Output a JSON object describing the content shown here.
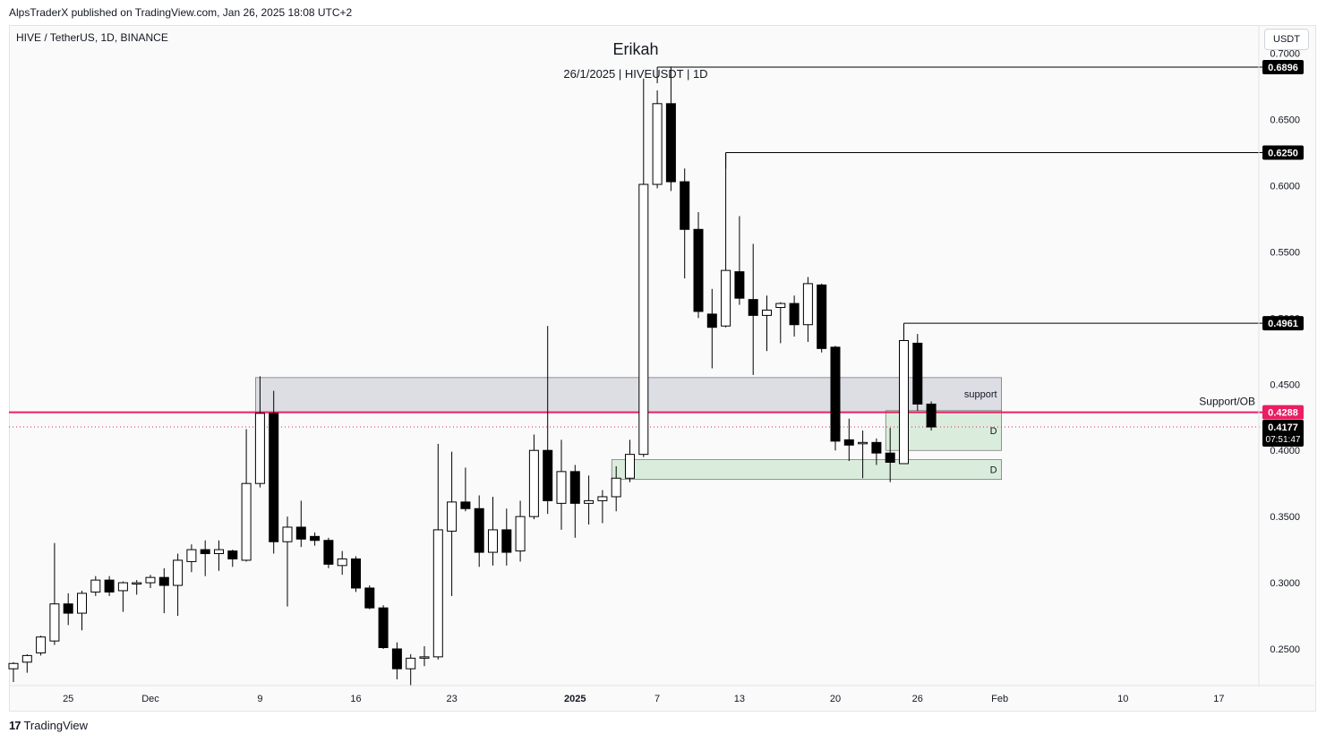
{
  "header": {
    "caption": "AlpsTraderX published on TradingView.com, Jan 26, 2025 18:08 UTC+2",
    "symbol_info": "HIVE / TetherUS, 1D, BINANCE",
    "currency_button": "USDT"
  },
  "footer": {
    "logo": "17",
    "brand": "TradingView"
  },
  "colors": {
    "bull_body": "#ffffff",
    "bear_body": "#000000",
    "candle_outline": "#000000",
    "support_line": "#e91e63",
    "zone_gray": "#d1d4dc",
    "zone_green": "#cfe8d2",
    "axis_text": "#131722"
  },
  "chart_data": {
    "type": "candlestick",
    "title": "Erikah",
    "subtitle": "26/1/2025 | HIVEUSDT | 1D",
    "ylim": [
      0.225,
      0.7
    ],
    "y_ticks": [
      "0.2500",
      "0.3000",
      "0.3500",
      "0.4000",
      "0.4500",
      "0.5000",
      "0.5500",
      "0.6000",
      "0.6500",
      "0.7000"
    ],
    "x_ticks": [
      {
        "date": "2024-11-25",
        "label": "25"
      },
      {
        "date": "2024-12-01",
        "label": "Dec"
      },
      {
        "date": "2024-12-09",
        "label": "9"
      },
      {
        "date": "2024-12-16",
        "label": "16"
      },
      {
        "date": "2024-12-23",
        "label": "23"
      },
      {
        "date": "2025-01-01",
        "label": "2025"
      },
      {
        "date": "2025-01-07",
        "label": "7"
      },
      {
        "date": "2025-01-13",
        "label": "13"
      },
      {
        "date": "2025-01-20",
        "label": "20"
      },
      {
        "date": "2025-01-26",
        "label": "26"
      },
      {
        "date": "2025-02-01",
        "label": "Feb"
      },
      {
        "date": "2025-02-10",
        "label": "10"
      },
      {
        "date": "2025-02-17",
        "label": "17"
      }
    ],
    "x_range": [
      "2024-11-21",
      "2025-02-24"
    ],
    "candles": [
      {
        "date": "2024-11-21",
        "open": 0.235,
        "high": 0.24,
        "low": 0.225,
        "close": 0.239
      },
      {
        "date": "2024-11-22",
        "open": 0.24,
        "high": 0.246,
        "low": 0.232,
        "close": 0.245
      },
      {
        "date": "2024-11-23",
        "open": 0.247,
        "high": 0.26,
        "low": 0.245,
        "close": 0.259
      },
      {
        "date": "2024-11-24",
        "open": 0.256,
        "high": 0.33,
        "low": 0.253,
        "close": 0.284
      },
      {
        "date": "2024-11-25",
        "open": 0.284,
        "high": 0.292,
        "low": 0.268,
        "close": 0.277
      },
      {
        "date": "2024-11-26",
        "open": 0.277,
        "high": 0.294,
        "low": 0.264,
        "close": 0.292
      },
      {
        "date": "2024-11-27",
        "open": 0.293,
        "high": 0.305,
        "low": 0.29,
        "close": 0.302
      },
      {
        "date": "2024-11-28",
        "open": 0.302,
        "high": 0.305,
        "low": 0.29,
        "close": 0.293
      },
      {
        "date": "2024-11-29",
        "open": 0.294,
        "high": 0.301,
        "low": 0.278,
        "close": 0.3
      },
      {
        "date": "2024-11-30",
        "open": 0.299,
        "high": 0.302,
        "low": 0.291,
        "close": 0.3
      },
      {
        "date": "2024-12-01",
        "open": 0.3,
        "high": 0.306,
        "low": 0.296,
        "close": 0.304
      },
      {
        "date": "2024-12-02",
        "open": 0.304,
        "high": 0.311,
        "low": 0.277,
        "close": 0.298
      },
      {
        "date": "2024-12-03",
        "open": 0.298,
        "high": 0.322,
        "low": 0.275,
        "close": 0.317
      },
      {
        "date": "2024-12-04",
        "open": 0.316,
        "high": 0.329,
        "low": 0.308,
        "close": 0.325
      },
      {
        "date": "2024-12-05",
        "open": 0.325,
        "high": 0.332,
        "low": 0.305,
        "close": 0.322
      },
      {
        "date": "2024-12-06",
        "open": 0.322,
        "high": 0.332,
        "low": 0.309,
        "close": 0.325
      },
      {
        "date": "2024-12-07",
        "open": 0.324,
        "high": 0.325,
        "low": 0.312,
        "close": 0.318
      },
      {
        "date": "2024-12-08",
        "open": 0.317,
        "high": 0.416,
        "low": 0.316,
        "close": 0.375
      },
      {
        "date": "2024-12-09",
        "open": 0.375,
        "high": 0.456,
        "low": 0.372,
        "close": 0.428
      },
      {
        "date": "2024-12-10",
        "open": 0.428,
        "high": 0.445,
        "low": 0.322,
        "close": 0.331
      },
      {
        "date": "2024-12-11",
        "open": 0.331,
        "high": 0.35,
        "low": 0.282,
        "close": 0.342
      },
      {
        "date": "2024-12-12",
        "open": 0.342,
        "high": 0.362,
        "low": 0.327,
        "close": 0.333
      },
      {
        "date": "2024-12-13",
        "open": 0.335,
        "high": 0.338,
        "low": 0.328,
        "close": 0.332
      },
      {
        "date": "2024-12-14",
        "open": 0.332,
        "high": 0.334,
        "low": 0.311,
        "close": 0.314
      },
      {
        "date": "2024-12-15",
        "open": 0.313,
        "high": 0.324,
        "low": 0.306,
        "close": 0.318
      },
      {
        "date": "2024-12-16",
        "open": 0.318,
        "high": 0.32,
        "low": 0.293,
        "close": 0.296
      },
      {
        "date": "2024-12-17",
        "open": 0.296,
        "high": 0.298,
        "low": 0.28,
        "close": 0.281
      },
      {
        "date": "2024-12-18",
        "open": 0.281,
        "high": 0.283,
        "low": 0.25,
        "close": 0.251
      },
      {
        "date": "2024-12-19",
        "open": 0.25,
        "high": 0.255,
        "low": 0.227,
        "close": 0.235
      },
      {
        "date": "2024-12-20",
        "open": 0.235,
        "high": 0.246,
        "low": 0.222,
        "close": 0.243
      },
      {
        "date": "2024-12-21",
        "open": 0.243,
        "high": 0.252,
        "low": 0.237,
        "close": 0.244
      },
      {
        "date": "2024-12-22",
        "open": 0.244,
        "high": 0.405,
        "low": 0.242,
        "close": 0.34
      },
      {
        "date": "2024-12-23",
        "open": 0.339,
        "high": 0.399,
        "low": 0.29,
        "close": 0.361
      },
      {
        "date": "2024-12-24",
        "open": 0.361,
        "high": 0.387,
        "low": 0.354,
        "close": 0.356
      },
      {
        "date": "2024-12-25",
        "open": 0.356,
        "high": 0.366,
        "low": 0.312,
        "close": 0.323
      },
      {
        "date": "2024-12-26",
        "open": 0.323,
        "high": 0.365,
        "low": 0.313,
        "close": 0.34
      },
      {
        "date": "2024-12-27",
        "open": 0.34,
        "high": 0.356,
        "low": 0.313,
        "close": 0.323
      },
      {
        "date": "2024-12-28",
        "open": 0.324,
        "high": 0.362,
        "low": 0.316,
        "close": 0.35
      },
      {
        "date": "2024-12-29",
        "open": 0.35,
        "high": 0.412,
        "low": 0.348,
        "close": 0.4
      },
      {
        "date": "2024-12-30",
        "open": 0.4,
        "high": 0.494,
        "low": 0.352,
        "close": 0.362
      },
      {
        "date": "2024-12-31",
        "open": 0.36,
        "high": 0.408,
        "low": 0.34,
        "close": 0.384
      },
      {
        "date": "2025-01-01",
        "open": 0.384,
        "high": 0.389,
        "low": 0.334,
        "close": 0.36
      },
      {
        "date": "2025-01-02",
        "open": 0.36,
        "high": 0.381,
        "low": 0.344,
        "close": 0.362
      },
      {
        "date": "2025-01-03",
        "open": 0.362,
        "high": 0.37,
        "low": 0.345,
        "close": 0.365
      },
      {
        "date": "2025-01-04",
        "open": 0.365,
        "high": 0.388,
        "low": 0.354,
        "close": 0.379
      },
      {
        "date": "2025-01-05",
        "open": 0.379,
        "high": 0.408,
        "low": 0.376,
        "close": 0.397
      },
      {
        "date": "2025-01-06",
        "open": 0.397,
        "high": 0.681,
        "low": 0.395,
        "close": 0.601
      },
      {
        "date": "2025-01-07",
        "open": 0.601,
        "high": 0.672,
        "low": 0.598,
        "close": 0.662
      },
      {
        "date": "2025-01-08",
        "open": 0.662,
        "high": 0.69,
        "low": 0.596,
        "close": 0.603
      },
      {
        "date": "2025-01-09",
        "open": 0.603,
        "high": 0.613,
        "low": 0.53,
        "close": 0.567
      },
      {
        "date": "2025-01-10",
        "open": 0.567,
        "high": 0.58,
        "low": 0.5,
        "close": 0.505
      },
      {
        "date": "2025-01-11",
        "open": 0.503,
        "high": 0.522,
        "low": 0.462,
        "close": 0.493
      },
      {
        "date": "2025-01-12",
        "open": 0.494,
        "high": 0.625,
        "low": 0.493,
        "close": 0.536
      },
      {
        "date": "2025-01-13",
        "open": 0.535,
        "high": 0.577,
        "low": 0.51,
        "close": 0.515
      },
      {
        "date": "2025-01-14",
        "open": 0.514,
        "high": 0.556,
        "low": 0.457,
        "close": 0.502
      },
      {
        "date": "2025-01-15",
        "open": 0.502,
        "high": 0.517,
        "low": 0.475,
        "close": 0.506
      },
      {
        "date": "2025-01-16",
        "open": 0.508,
        "high": 0.512,
        "low": 0.481,
        "close": 0.511
      },
      {
        "date": "2025-01-17",
        "open": 0.511,
        "high": 0.517,
        "low": 0.486,
        "close": 0.495
      },
      {
        "date": "2025-01-18",
        "open": 0.495,
        "high": 0.531,
        "low": 0.482,
        "close": 0.526
      },
      {
        "date": "2025-01-19",
        "open": 0.525,
        "high": 0.526,
        "low": 0.474,
        "close": 0.477
      },
      {
        "date": "2025-01-20",
        "open": 0.478,
        "high": 0.479,
        "low": 0.4,
        "close": 0.407
      },
      {
        "date": "2025-01-21",
        "open": 0.408,
        "high": 0.424,
        "low": 0.392,
        "close": 0.404
      },
      {
        "date": "2025-01-22",
        "open": 0.405,
        "high": 0.415,
        "low": 0.379,
        "close": 0.406
      },
      {
        "date": "2025-01-23",
        "open": 0.406,
        "high": 0.409,
        "low": 0.389,
        "close": 0.398
      },
      {
        "date": "2025-01-24",
        "open": 0.398,
        "high": 0.417,
        "low": 0.376,
        "close": 0.391
      },
      {
        "date": "2025-01-25",
        "open": 0.39,
        "high": 0.49,
        "low": 0.39,
        "close": 0.483
      },
      {
        "date": "2025-01-26",
        "open": 0.481,
        "high": 0.488,
        "low": 0.43,
        "close": 0.435
      },
      {
        "date": "2025-01-27",
        "open": 0.435,
        "high": 0.437,
        "low": 0.415,
        "close": 0.4177
      }
    ],
    "horizontal_levels": [
      {
        "from": "2025-01-07",
        "price": 0.6896,
        "label": "0.6896",
        "color": "#000000"
      },
      {
        "from": "2025-01-12",
        "price": 0.625,
        "label": "0.6250",
        "color": "#000000"
      },
      {
        "from": "2025-01-25",
        "price": 0.4961,
        "label": "0.4961",
        "color": "#000000"
      },
      {
        "from": "2024-11-21",
        "price": 0.4288,
        "label": "0.4288",
        "color": "#e91e63"
      }
    ],
    "current_price": {
      "value": "0.4177",
      "countdown": "07:51:47",
      "price": 0.4177
    },
    "zones": [
      {
        "from": "2024-12-09",
        "to": "2025-02-01",
        "top": 0.455,
        "bottom": 0.429,
        "label": "support",
        "color": "#d1d4dc"
      },
      {
        "from": "2025-01-24",
        "to": "2025-02-01",
        "top": 0.43,
        "bottom": 0.4,
        "label": "D",
        "color": "#cfe8d2"
      },
      {
        "from": "2025-01-04",
        "to": "2025-02-01",
        "top": 0.393,
        "bottom": 0.378,
        "label": "D",
        "color": "#cfe8d2"
      }
    ],
    "annotations": [
      {
        "text": "Support/OB",
        "date": "2025-02-20",
        "price": 0.433
      }
    ]
  }
}
